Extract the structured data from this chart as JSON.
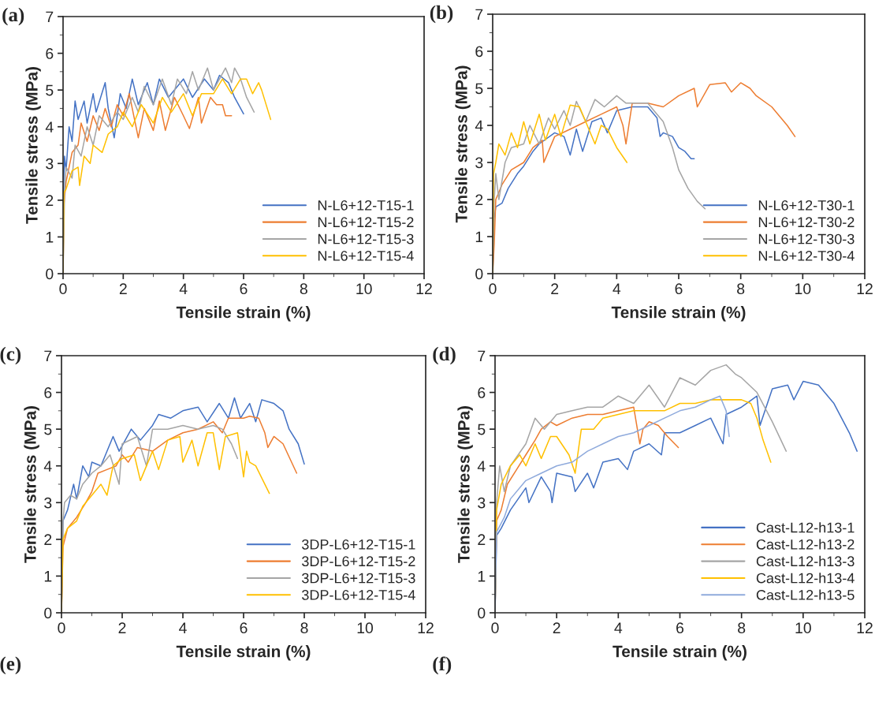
{
  "chart_data": [
    {
      "type": "line",
      "title": "(a)",
      "xlabel": "Tensile strain (%)",
      "ylabel": "Tensile stress (MPa)",
      "xlim": [
        0,
        12
      ],
      "ylim": [
        0,
        7
      ],
      "xticks": [
        0,
        2,
        4,
        6,
        8,
        10,
        12
      ],
      "yticks": [
        0,
        1,
        2,
        3,
        4,
        5,
        6,
        7
      ],
      "grid": false,
      "legend": "bottom right",
      "marker": "none",
      "line_style": "solid",
      "series": [
        {
          "name": "N-L6+12-T15-1",
          "color": "#4472c4",
          "x": [
            0,
            0.02,
            0.05,
            0.1,
            0.2,
            0.3,
            0.4,
            0.5,
            0.7,
            0.8,
            1.0,
            1.1,
            1.4,
            1.5,
            1.7,
            1.9,
            2.1,
            2.3,
            2.5,
            2.8,
            3.0,
            3.2,
            3.5,
            4.0,
            4.3,
            4.7,
            5.0,
            5.2,
            5.5,
            5.7,
            6.0
          ],
          "values": [
            0,
            2.5,
            3.2,
            2.8,
            4.0,
            3.6,
            4.7,
            4.2,
            4.7,
            4.1,
            4.9,
            4.4,
            5.2,
            4.5,
            3.7,
            4.9,
            4.5,
            5.3,
            4.6,
            5.2,
            4.6,
            5.3,
            4.8,
            5.3,
            4.8,
            5.3,
            5.0,
            5.4,
            5.2,
            4.8,
            4.35
          ]
        },
        {
          "name": "N-L6+12-T15-2",
          "color": "#ed7d31",
          "x": [
            0,
            0.03,
            0.1,
            0.3,
            0.5,
            0.6,
            0.8,
            1.0,
            1.2,
            1.4,
            1.6,
            1.8,
            2.0,
            2.2,
            2.4,
            2.5,
            2.7,
            3.0,
            3.2,
            3.4,
            3.7,
            4.0,
            4.2,
            4.5,
            4.6,
            4.9,
            5.1,
            5.3,
            5.4,
            5.6
          ],
          "values": [
            0,
            1.9,
            2.5,
            3.3,
            3.5,
            4.1,
            3.6,
            4.3,
            3.9,
            4.5,
            4.0,
            4.6,
            4.3,
            4.9,
            4.1,
            3.7,
            4.5,
            3.9,
            4.7,
            3.9,
            4.8,
            4.3,
            3.95,
            4.8,
            4.1,
            4.8,
            4.6,
            4.6,
            4.3,
            4.3
          ]
        },
        {
          "name": "N-L6+12-T15-3",
          "color": "#a5a5a5",
          "x": [
            0,
            0.05,
            0.1,
            0.3,
            0.4,
            0.6,
            0.8,
            1.0,
            1.2,
            1.5,
            1.8,
            2.0,
            2.3,
            2.5,
            2.7,
            3.0,
            3.3,
            3.6,
            3.8,
            4.1,
            4.3,
            4.5,
            4.8,
            5.0,
            5.4,
            5.6,
            5.7,
            5.9,
            6.1,
            6.35
          ],
          "values": [
            0,
            2.2,
            2.9,
            2.6,
            3.5,
            3.2,
            4.0,
            3.5,
            4.3,
            4.0,
            4.4,
            4.2,
            4.8,
            4.4,
            5.1,
            4.6,
            5.3,
            4.6,
            5.3,
            4.9,
            5.5,
            5.0,
            5.6,
            5.0,
            5.6,
            5.2,
            5.6,
            5.3,
            4.8,
            4.4
          ]
        },
        {
          "name": "N-L6+12-T15-4",
          "color": "#ffc000",
          "x": [
            0,
            0.03,
            0.1,
            0.3,
            0.5,
            0.55,
            0.7,
            0.9,
            1.0,
            1.3,
            1.5,
            1.8,
            2.0,
            2.3,
            2.6,
            3.0,
            3.3,
            3.6,
            4.0,
            4.3,
            4.6,
            5.0,
            5.3,
            5.6,
            5.9,
            6.1,
            6.3,
            6.5,
            6.6,
            6.9
          ],
          "values": [
            0,
            2.2,
            2.3,
            2.8,
            2.9,
            2.4,
            3.2,
            3.0,
            3.5,
            3.3,
            3.8,
            4.0,
            4.4,
            4.0,
            4.6,
            4.1,
            4.8,
            4.4,
            4.9,
            4.3,
            4.9,
            4.9,
            5.3,
            4.9,
            5.3,
            5.3,
            4.9,
            5.2,
            5.0,
            4.2
          ]
        }
      ]
    },
    {
      "type": "line",
      "title": "(b)",
      "xlabel": "Tensile strain (%)",
      "ylabel": "Tensile stress (MPa)",
      "xlim": [
        0,
        12
      ],
      "ylim": [
        0,
        7
      ],
      "xticks": [
        0,
        2,
        4,
        6,
        8,
        10,
        12
      ],
      "yticks": [
        0,
        1,
        2,
        3,
        4,
        5,
        6,
        7
      ],
      "grid": false,
      "legend": "bottom right",
      "marker": "none",
      "line_style": "solid",
      "series": [
        {
          "name": "N-L6+12-T30-1",
          "color": "#4472c4",
          "x": [
            0,
            0.05,
            0.1,
            0.3,
            0.5,
            0.8,
            1.0,
            1.3,
            1.5,
            2.0,
            2.3,
            2.5,
            2.7,
            2.9,
            3.2,
            3.5,
            3.7,
            4.0,
            4.5,
            5.0,
            5.3,
            5.4,
            5.5,
            5.8,
            6.0,
            6.2,
            6.4,
            6.5
          ],
          "values": [
            0,
            1.5,
            1.8,
            1.9,
            2.3,
            2.7,
            2.9,
            3.3,
            3.5,
            3.8,
            3.7,
            3.2,
            3.9,
            3.3,
            4.1,
            4.2,
            3.8,
            4.4,
            4.5,
            4.5,
            4.2,
            3.7,
            3.8,
            3.7,
            3.4,
            3.3,
            3.1,
            3.1
          ]
        },
        {
          "name": "N-L6+12-T30-2",
          "color": "#ed7d31",
          "x": [
            0,
            0.05,
            0.1,
            0.3,
            0.6,
            1.0,
            1.3,
            1.6,
            1.65,
            2.0,
            2.5,
            3.0,
            3.5,
            4.0,
            4.2,
            4.3,
            4.5,
            5.0,
            5.5,
            6.0,
            6.5,
            6.6,
            7.0,
            7.5,
            7.7,
            8.0,
            8.3,
            8.5,
            9.0,
            9.5,
            9.75
          ],
          "values": [
            0,
            0.8,
            2.0,
            2.4,
            2.8,
            3.0,
            3.4,
            3.6,
            3.0,
            3.7,
            3.9,
            4.1,
            4.3,
            4.5,
            4.0,
            3.5,
            4.6,
            4.6,
            4.5,
            4.8,
            5.0,
            4.5,
            5.1,
            5.15,
            4.9,
            5.15,
            5.0,
            4.8,
            4.5,
            4.0,
            3.7
          ]
        },
        {
          "name": "N-L6+12-T30-3",
          "color": "#a5a5a5",
          "x": [
            0,
            0.05,
            0.1,
            0.2,
            0.4,
            0.6,
            1.0,
            1.2,
            1.5,
            1.8,
            2.0,
            2.3,
            2.5,
            2.7,
            3.0,
            3.3,
            3.6,
            4.0,
            4.3,
            4.6,
            5.0,
            5.2,
            5.5,
            5.8,
            6.0,
            6.3,
            6.6,
            6.85
          ],
          "values": [
            0,
            2.0,
            2.7,
            2.0,
            3.0,
            3.4,
            3.5,
            4.0,
            3.5,
            4.2,
            3.9,
            4.4,
            4.0,
            4.65,
            4.1,
            4.7,
            4.5,
            4.8,
            4.6,
            4.6,
            4.6,
            4.4,
            4.1,
            3.4,
            2.8,
            2.3,
            1.95,
            1.75
          ]
        },
        {
          "name": "N-L6+12-T30-4",
          "color": "#ffc000",
          "x": [
            0,
            0.03,
            0.1,
            0.2,
            0.4,
            0.6,
            0.8,
            1.0,
            1.2,
            1.5,
            1.7,
            2.0,
            2.2,
            2.5,
            2.8,
            3.0,
            3.3,
            3.5,
            3.7,
            4.0,
            4.33
          ],
          "values": [
            0,
            2.7,
            3.0,
            3.5,
            3.2,
            3.8,
            3.4,
            4.1,
            3.5,
            4.3,
            3.6,
            4.3,
            3.7,
            4.55,
            4.5,
            4.1,
            3.5,
            4.0,
            3.9,
            3.4,
            3.0
          ]
        }
      ]
    },
    {
      "type": "line",
      "title": "(c)",
      "xlabel": "Tensile strain (%)",
      "ylabel": "Tensile stress (MPa)",
      "xlim": [
        0,
        12
      ],
      "ylim": [
        0,
        7
      ],
      "xticks": [
        0,
        2,
        4,
        6,
        8,
        10,
        12
      ],
      "yticks": [
        0,
        1,
        2,
        3,
        4,
        5,
        6,
        7
      ],
      "grid": false,
      "legend": "bottom right",
      "marker": "none",
      "line_style": "solid",
      "annotations": [
        "(e)"
      ],
      "series": [
        {
          "name": "3DP-L6+12-T15-1",
          "color": "#4472c4",
          "x": [
            0,
            0.05,
            0.2,
            0.4,
            0.5,
            0.7,
            0.9,
            1.0,
            1.3,
            1.7,
            1.9,
            2.3,
            2.6,
            3.0,
            3.2,
            3.6,
            4.0,
            4.5,
            4.8,
            5.2,
            5.5,
            5.7,
            5.9,
            6.2,
            6.4,
            6.6,
            7.0,
            7.3,
            7.5,
            7.8,
            8.0
          ],
          "values": [
            0,
            2.5,
            2.8,
            3.5,
            3.1,
            4.0,
            3.7,
            4.1,
            4.0,
            4.8,
            4.4,
            5.0,
            4.7,
            5.1,
            5.4,
            5.3,
            5.5,
            5.6,
            5.2,
            5.7,
            5.3,
            5.85,
            5.3,
            5.7,
            5.2,
            5.8,
            5.7,
            5.5,
            5.0,
            4.6,
            4.05
          ]
        },
        {
          "name": "3DP-L6+12-T15-2",
          "color": "#ed7d31",
          "x": [
            0,
            0.05,
            0.2,
            0.5,
            0.8,
            1.0,
            1.2,
            1.5,
            1.8,
            2.0,
            2.2,
            2.5,
            3.0,
            3.5,
            4.0,
            4.5,
            5.0,
            5.3,
            5.5,
            6.0,
            6.2,
            6.5,
            6.7,
            6.8,
            7.0,
            7.3,
            7.75
          ],
          "values": [
            0,
            1.8,
            2.3,
            2.6,
            3.0,
            3.3,
            3.8,
            3.9,
            4.0,
            4.3,
            4.1,
            4.5,
            4.4,
            4.7,
            4.9,
            5.0,
            5.2,
            4.9,
            5.3,
            5.3,
            5.35,
            5.3,
            4.9,
            4.5,
            4.8,
            4.6,
            3.8
          ]
        },
        {
          "name": "3DP-L6+12-T15-3",
          "color": "#a5a5a5",
          "x": [
            0,
            0.05,
            0.1,
            0.3,
            0.5,
            0.7,
            1.0,
            1.3,
            1.6,
            1.9,
            2.0,
            2.5,
            2.8,
            3.0,
            3.5,
            4.0,
            4.5,
            5.0,
            5.3,
            5.6,
            5.8
          ],
          "values": [
            0,
            2.5,
            3.0,
            3.2,
            3.1,
            3.5,
            3.8,
            4.0,
            4.3,
            3.5,
            4.6,
            4.8,
            4.0,
            5.0,
            5.0,
            5.1,
            5.0,
            5.1,
            5.0,
            4.6,
            4.2
          ]
        },
        {
          "name": "3DP-L6+12-T15-4",
          "color": "#ffc000",
          "x": [
            0,
            0.05,
            0.2,
            0.5,
            0.7,
            1.0,
            1.3,
            1.5,
            1.7,
            2.0,
            2.4,
            2.6,
            3.0,
            3.2,
            3.5,
            3.9,
            4.0,
            4.3,
            4.5,
            4.8,
            5.0,
            5.2,
            5.4,
            5.8,
            5.9,
            6.0,
            6.1,
            6.2,
            6.4,
            6.85
          ],
          "values": [
            0,
            2.0,
            2.3,
            2.5,
            2.9,
            3.2,
            3.5,
            3.2,
            4.0,
            4.2,
            4.3,
            3.6,
            4.4,
            3.9,
            4.7,
            4.8,
            4.1,
            4.7,
            4.0,
            4.9,
            4.9,
            3.9,
            4.8,
            4.9,
            4.3,
            3.7,
            4.4,
            4.1,
            4.0,
            3.25
          ]
        }
      ]
    },
    {
      "type": "line",
      "title": "(d)",
      "xlabel": "Tensile strain (%)",
      "ylabel": "Tensile stress (MPa)",
      "xlim": [
        0,
        12
      ],
      "ylim": [
        0,
        7
      ],
      "xticks": [
        0,
        2,
        4,
        6,
        8,
        10,
        12
      ],
      "yticks": [
        0,
        1,
        2,
        3,
        4,
        5,
        6,
        7
      ],
      "grid": false,
      "legend": "bottom right",
      "marker": "none",
      "line_style": "solid",
      "annotations": [
        "(f)"
      ],
      "series": [
        {
          "name": "Cast-L12-h13-1",
          "color": "#4472c4",
          "x": [
            0,
            0.05,
            0.2,
            0.5,
            1.0,
            1.1,
            1.5,
            1.8,
            1.85,
            2.0,
            2.5,
            2.6,
            3.0,
            3.2,
            3.5,
            4.0,
            4.3,
            4.5,
            5.0,
            5.4,
            5.5,
            6.0,
            6.5,
            7.0,
            7.4,
            7.5,
            8.0,
            8.5,
            8.6,
            9.0,
            9.5,
            9.7,
            10.0,
            10.5,
            11.0,
            11.5,
            11.75
          ],
          "values": [
            0,
            2.1,
            2.3,
            2.8,
            3.4,
            3.0,
            3.7,
            3.3,
            3.0,
            3.8,
            3.7,
            3.3,
            3.8,
            3.4,
            4.1,
            4.2,
            3.9,
            4.4,
            4.6,
            4.3,
            4.9,
            4.9,
            5.1,
            5.3,
            4.6,
            5.4,
            5.6,
            5.9,
            5.1,
            6.1,
            6.2,
            5.8,
            6.3,
            6.2,
            5.7,
            4.9,
            4.4
          ]
        },
        {
          "name": "Cast-L12-h13-2",
          "color": "#ed7d31",
          "x": [
            0,
            0.05,
            0.2,
            0.4,
            0.7,
            1.0,
            1.3,
            1.5,
            1.8,
            2.0,
            2.5,
            3.0,
            3.5,
            4.0,
            4.5,
            4.7,
            4.8,
            5.0,
            5.3,
            5.6,
            5.95
          ],
          "values": [
            0,
            2.5,
            2.8,
            3.5,
            3.9,
            4.3,
            4.7,
            5.0,
            5.2,
            5.1,
            5.3,
            5.4,
            5.4,
            5.5,
            5.6,
            4.6,
            5.0,
            5.2,
            5.1,
            4.8,
            4.5
          ]
        },
        {
          "name": "Cast-L12-h13-3",
          "color": "#a5a5a5",
          "x": [
            0,
            0.05,
            0.15,
            0.3,
            0.5,
            1.0,
            1.3,
            1.6,
            2.0,
            2.5,
            3.0,
            3.5,
            4.0,
            4.5,
            5.0,
            5.5,
            6.0,
            6.5,
            7.0,
            7.5,
            7.8,
            8.0,
            8.5,
            9.0,
            9.45
          ],
          "values": [
            0,
            3.0,
            4.0,
            3.3,
            4.0,
            4.6,
            5.3,
            5.0,
            5.4,
            5.5,
            5.6,
            5.6,
            5.9,
            5.7,
            6.2,
            5.6,
            6.4,
            6.2,
            6.6,
            6.75,
            6.5,
            6.4,
            6.0,
            5.2,
            4.4
          ]
        },
        {
          "name": "Cast-L12-h13-4",
          "color": "#ffc000",
          "x": [
            0,
            0.05,
            0.2,
            0.5,
            0.8,
            1.0,
            1.3,
            1.5,
            1.8,
            2.0,
            2.4,
            2.6,
            2.8,
            3.2,
            3.5,
            4.0,
            4.5,
            5.0,
            5.5,
            6.0,
            6.5,
            7.0,
            7.5,
            8.0,
            8.3,
            8.5,
            8.7,
            8.95
          ],
          "values": [
            0,
            2.8,
            3.5,
            4.0,
            4.3,
            4.0,
            4.6,
            4.2,
            4.8,
            4.8,
            4.3,
            3.8,
            5.0,
            5.0,
            5.3,
            5.4,
            5.5,
            5.5,
            5.5,
            5.7,
            5.7,
            5.8,
            5.8,
            5.8,
            5.7,
            5.3,
            4.7,
            4.1
          ]
        },
        {
          "name": "Cast-L12-h13-5",
          "color": "#8faadc",
          "x": [
            0,
            0.05,
            0.3,
            0.5,
            1.0,
            1.5,
            2.0,
            2.5,
            3.0,
            3.5,
            4.0,
            4.5,
            5.0,
            5.5,
            6.0,
            6.5,
            7.0,
            7.3,
            7.5,
            7.6
          ],
          "values": [
            0,
            2.2,
            2.6,
            3.1,
            3.6,
            3.8,
            4.0,
            4.1,
            4.4,
            4.6,
            4.8,
            4.9,
            5.1,
            5.3,
            5.5,
            5.6,
            5.8,
            5.9,
            5.5,
            4.8
          ]
        }
      ]
    }
  ]
}
